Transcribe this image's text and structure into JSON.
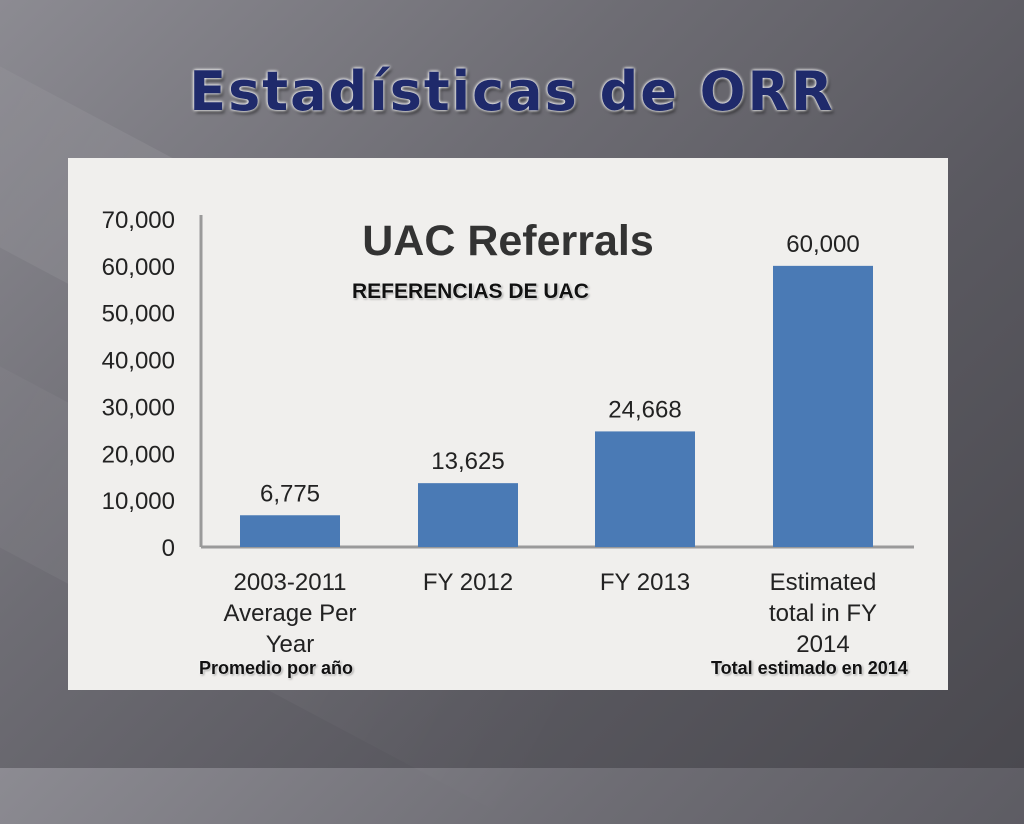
{
  "slide": {
    "title": "Estadísticas de ORR"
  },
  "annotations": {
    "subtitle_es": "REFERENCIAS DE UAC",
    "promedio": "Promedio por año",
    "total_estimado": "Total estimado en 2014"
  },
  "chart_data": {
    "type": "bar",
    "title": "UAC Referrals",
    "categories": [
      [
        "2003-2011",
        "Average Per",
        "Year"
      ],
      [
        "FY 2012"
      ],
      [
        "FY 2013"
      ],
      [
        "Estimated",
        "total in FY",
        "2014"
      ]
    ],
    "values": [
      6775,
      13625,
      24668,
      60000
    ],
    "data_labels": [
      "6,775",
      "13,625",
      "24,668",
      "60,000"
    ],
    "yticks": [
      "0",
      "10,000",
      "20,000",
      "30,000",
      "40,000",
      "50,000",
      "60,000",
      "70,000"
    ],
    "ylim": [
      0,
      70000
    ],
    "grid": false,
    "bar_color": "#4a7ab5"
  }
}
